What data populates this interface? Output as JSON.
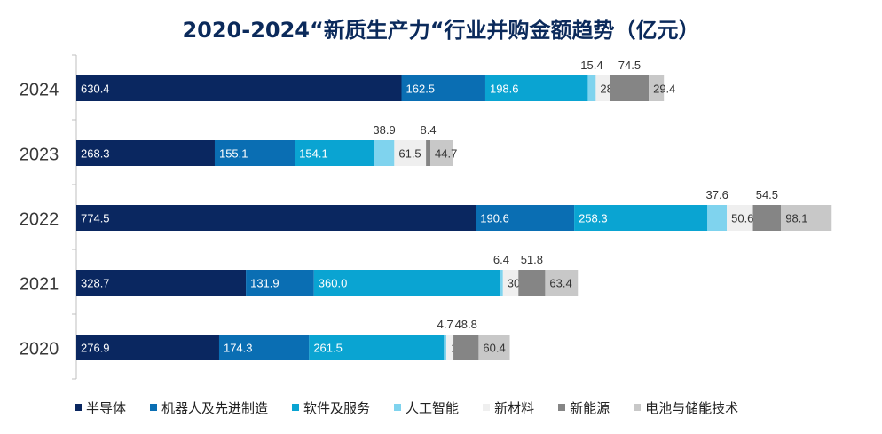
{
  "chart_data": {
    "type": "bar",
    "orientation": "horizontal",
    "stacked": true,
    "title": "2020-2024“新质生产力“行业并购金额趋势（亿元）",
    "categories": [
      "2024",
      "2023",
      "2022",
      "2021",
      "2020"
    ],
    "series": [
      {
        "name": "半导体",
        "color": "#0a2760",
        "values": [
          630.4,
          268.3,
          774.5,
          328.7,
          276.9
        ]
      },
      {
        "name": "机器人及先进制造",
        "color": "#0a6eb3",
        "values": [
          162.5,
          155.1,
          190.6,
          131.9,
          174.3
        ]
      },
      {
        "name": "软件及服务",
        "color": "#0aa4d2",
        "values": [
          198.6,
          154.1,
          258.3,
          360.0,
          261.5
        ]
      },
      {
        "name": "人工智能",
        "color": "#7fd3ee",
        "values": [
          15.4,
          38.9,
          37.6,
          6.4,
          4.7
        ]
      },
      {
        "name": "新材料",
        "color": "#efefef",
        "values": [
          28.2,
          61.5,
          50.6,
          30.1,
          13.7
        ]
      },
      {
        "name": "新能源",
        "color": "#858585",
        "values": [
          74.5,
          8.4,
          54.5,
          51.8,
          48.8
        ]
      },
      {
        "name": "电池与储能技术",
        "color": "#c8c8c8",
        "values": [
          29.4,
          44.7,
          98.1,
          63.4,
          60.4
        ]
      }
    ],
    "label_placement": [
      "inside",
      "inside",
      "inside",
      "above",
      "inside",
      "above-center",
      "inside"
    ],
    "xlim": [
      0,
      1493
    ],
    "grid": false,
    "legend_position": "bottom"
  }
}
